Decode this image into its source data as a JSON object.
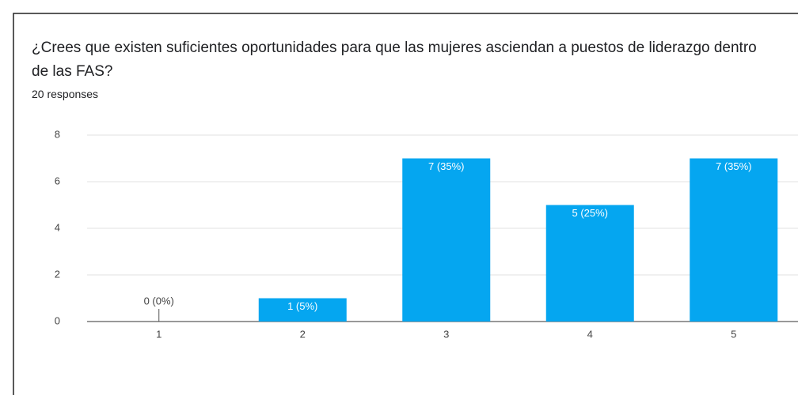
{
  "chart_data": {
    "type": "bar",
    "title": "¿Crees que existen suficientes oportunidades para que las mujeres asciendan a puestos de liderazgo dentro de las FAS?",
    "subtitle": "20 responses",
    "categories": [
      "1",
      "2",
      "3",
      "4",
      "5"
    ],
    "values": [
      0,
      1,
      7,
      5,
      7
    ],
    "value_labels": [
      "0 (0%)",
      "1 (5%)",
      "7 (35%)",
      "5 (25%)",
      "7 (35%)"
    ],
    "color": "#05a6f0",
    "ylim": [
      0,
      8
    ],
    "yticks": [
      0,
      2,
      4,
      6,
      8
    ],
    "grid": true
  }
}
